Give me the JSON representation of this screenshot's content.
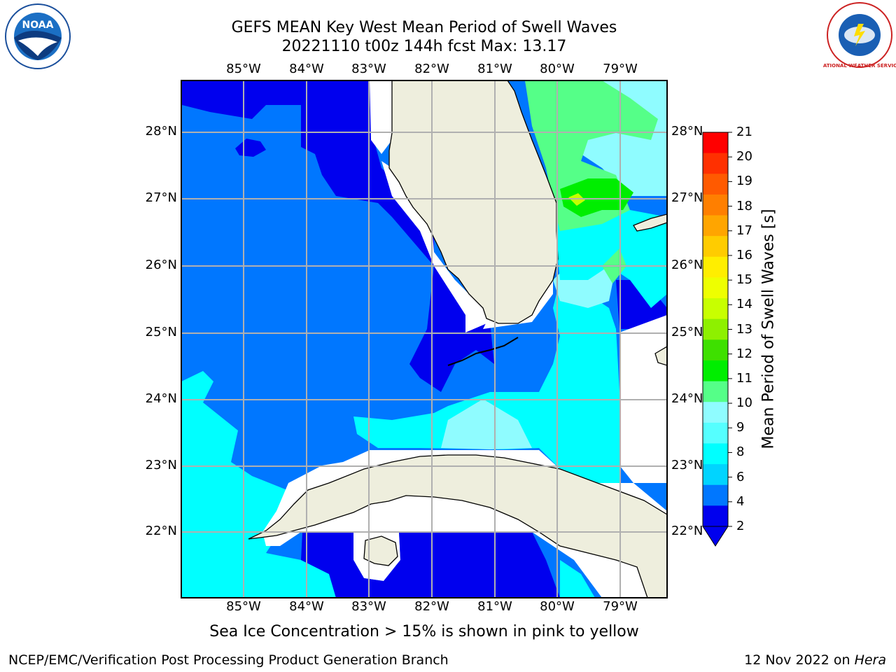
{
  "header": {
    "title_line1": "GEFS MEAN Key West Mean Period of Swell Waves",
    "title_line2": "20221110 t00z 144h fcst   Max: 13.17"
  },
  "map": {
    "lon_labels": [
      "85°W",
      "84°W",
      "83°W",
      "82°W",
      "81°W",
      "80°W",
      "79°W"
    ],
    "lat_labels": [
      "28°N",
      "27°N",
      "26°N",
      "25°N",
      "24°N",
      "23°N",
      "22°N"
    ],
    "colors": {
      "land": "#eeeedd",
      "very_low": "#0000ee",
      "low": "#0077ff",
      "cyan": "#00ffff",
      "light_cyan": "#8ffcff",
      "green": "#55ff88",
      "bright_green": "#00ee00",
      "yellow_green": "#c5ff00",
      "grid": "#b0b0b0"
    }
  },
  "colorbar": {
    "label": "Mean Period of Swell Waves [s]",
    "ticks": [
      "21",
      "20",
      "19",
      "18",
      "17",
      "16",
      "15",
      "14",
      "13",
      "12",
      "11",
      "10",
      "9",
      "8",
      "6",
      "4",
      "2"
    ],
    "colors": [
      "#ff0000",
      "#ff3000",
      "#ff5a00",
      "#ff7f00",
      "#ffa500",
      "#ffcc00",
      "#ffee00",
      "#eeff00",
      "#c8ff00",
      "#8ef000",
      "#3ee000",
      "#00ee00",
      "#55ff88",
      "#8ffcff",
      "#55ffff",
      "#00ffff",
      "#00d4ff",
      "#0077ff",
      "#0000ee"
    ]
  },
  "footer": {
    "note": "Sea Ice Concentration > 15% is shown in pink to yellow",
    "left": "NCEP/EMC/Verification Post Processing Product Generation Branch",
    "right_date": "12 Nov 2022 on",
    "right_host": "Hera"
  },
  "logos": {
    "noaa_text": "NOAA",
    "nws_text": "NATIONAL WEATHER SERVICE"
  }
}
